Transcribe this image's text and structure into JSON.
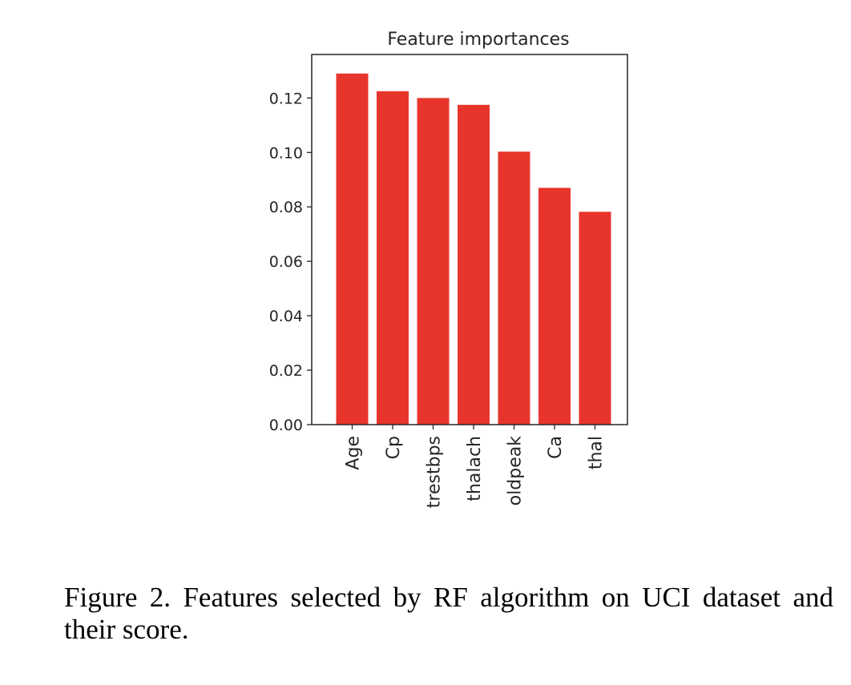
{
  "chart_data": {
    "type": "bar",
    "title": "Feature importances",
    "categories": [
      "Age",
      "Cp",
      "trestbps",
      "thalach",
      "oldpeak",
      "Ca",
      "thal"
    ],
    "values": [
      0.129,
      0.1225,
      0.12,
      0.1175,
      0.1003,
      0.087,
      0.0782
    ],
    "xlabel": "",
    "ylabel": "",
    "ylim": [
      0,
      0.136
    ],
    "yticks": [
      0.0,
      0.02,
      0.04,
      0.06,
      0.08,
      0.1,
      0.12
    ],
    "ytick_labels": [
      "0.00",
      "0.02",
      "0.04",
      "0.06",
      "0.08",
      "0.10",
      "0.12"
    ],
    "grid": false,
    "bar_color": "#e8352b",
    "axis_color": "#262626"
  },
  "caption": "Figure 2. Features selected by RF algorithm on UCI dataset and their score."
}
